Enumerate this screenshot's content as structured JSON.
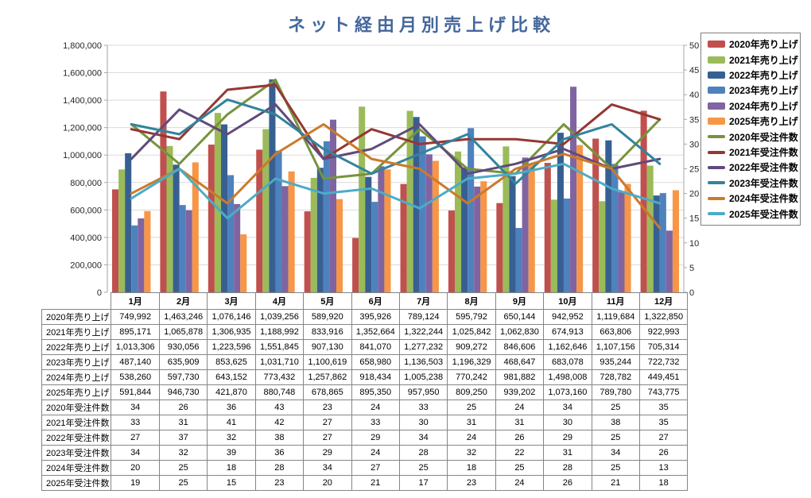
{
  "title": "ネット経由月別売上げ比較",
  "colors": {
    "title": "#44679C",
    "gridline": "#D9D9D9",
    "axis_line": "#A6A6A6",
    "axis_text": "#262626",
    "table_border": "#858585",
    "legend_border": "#7F7F7F"
  },
  "chart_data": {
    "type": "bar+line combo",
    "title": "ネット経由月別売上げ比較",
    "categories": [
      "1月",
      "2月",
      "3月",
      "4月",
      "5月",
      "6月",
      "7月",
      "8月",
      "9月",
      "10月",
      "11月",
      "12月"
    ],
    "bar_series": [
      {
        "name": "2020年売り上げ",
        "color": "#C0504D",
        "values": [
          749992,
          1463246,
          1076146,
          1039256,
          589920,
          395926,
          789124,
          595792,
          650144,
          942952,
          1119684,
          1322850
        ]
      },
      {
        "name": "2021年売り上げ",
        "color": "#9BBB59",
        "values": [
          895171,
          1065878,
          1306935,
          1188992,
          833916,
          1352664,
          1322244,
          1025842,
          1062830,
          674913,
          663806,
          922993
        ]
      },
      {
        "name": "2022年売り上げ",
        "color": "#376092",
        "values": [
          1013306,
          930056,
          1223596,
          1551845,
          907130,
          841070,
          1277232,
          909272,
          846606,
          1162646,
          1107156,
          705314
        ]
      },
      {
        "name": "2023年売り上げ",
        "color": "#4F81BD",
        "values": [
          487140,
          635909,
          853625,
          1031710,
          1100619,
          658980,
          1136503,
          1196329,
          468647,
          683078,
          935244,
          722732
        ]
      },
      {
        "name": "2024年売り上げ",
        "color": "#8064A2",
        "values": [
          538260,
          597730,
          643152,
          773432,
          1257862,
          918434,
          1005238,
          770242,
          981882,
          1498008,
          728782,
          449451
        ]
      },
      {
        "name": "2025年売り上げ",
        "color": "#F79646",
        "values": [
          591844,
          946730,
          421870,
          880748,
          678865,
          895350,
          957950,
          809250,
          939202,
          1073160,
          789780,
          743775
        ]
      }
    ],
    "line_series": [
      {
        "name": "2020年受注件数",
        "color": "#77933C",
        "values": [
          34,
          26,
          36,
          43,
          23,
          24,
          33,
          25,
          24,
          34,
          25,
          35
        ]
      },
      {
        "name": "2021年受注件数",
        "color": "#953735",
        "values": [
          33,
          31,
          41,
          42,
          27,
          33,
          30,
          31,
          31,
          30,
          38,
          35
        ]
      },
      {
        "name": "2022年受注件数",
        "color": "#604A7B",
        "values": [
          27,
          37,
          32,
          38,
          27,
          29,
          34,
          24,
          26,
          29,
          25,
          27
        ]
      },
      {
        "name": "2023年受注件数",
        "color": "#31849B",
        "values": [
          34,
          32,
          39,
          36,
          29,
          24,
          28,
          32,
          22,
          31,
          34,
          26
        ]
      },
      {
        "name": "2024年受注件数",
        "color": "#CB7A2C",
        "values": [
          20,
          25,
          18,
          28,
          34,
          27,
          25,
          18,
          25,
          28,
          25,
          13
        ]
      },
      {
        "name": "2025年受注件数",
        "color": "#4BACC6",
        "values": [
          19,
          25,
          15,
          23,
          20,
          21,
          17,
          23,
          24,
          26,
          21,
          18
        ]
      }
    ],
    "left_axis": {
      "min": 0,
      "max": 1800000,
      "step": 200000
    },
    "right_axis": {
      "min": 0,
      "max": 50,
      "step": 5
    },
    "grid": true,
    "legend_position": "right"
  }
}
